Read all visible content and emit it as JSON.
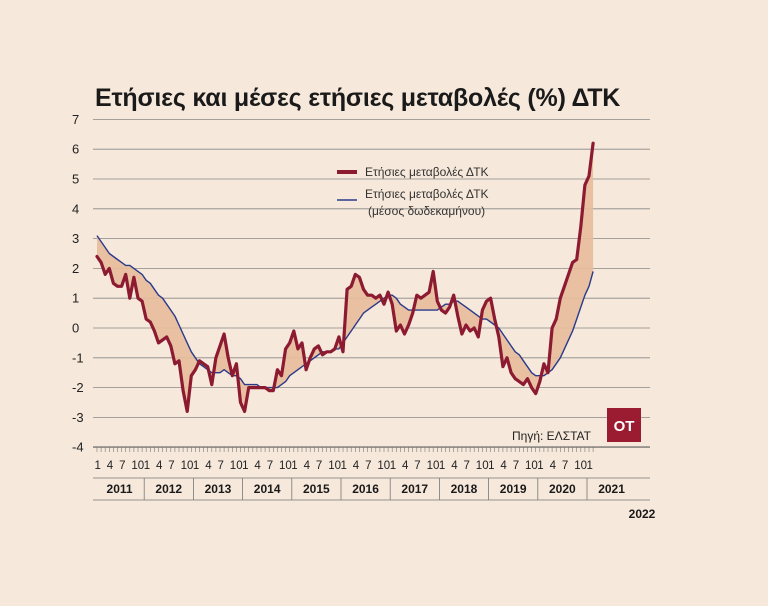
{
  "chart_data": {
    "type": "area",
    "title": "Ετήσιες και μέσες ετήσιες μεταβολές (%) ΔΤΚ",
    "xlabel": "",
    "ylabel": "",
    "ylim": [
      -4,
      7
    ],
    "y_ticks": [
      -4,
      -3,
      -2,
      -1,
      0,
      1,
      2,
      3,
      4,
      5,
      6,
      7
    ],
    "grid": true,
    "legend_position": "top-right",
    "x_start": "2011-01",
    "x_end": "2022-01",
    "month_tick_labels": [
      "1",
      "4",
      "7",
      "10"
    ],
    "year_labels": [
      "2011",
      "2012",
      "2013",
      "2014",
      "2015",
      "2016",
      "2017",
      "2018",
      "2019",
      "2020",
      "2021",
      "2022"
    ],
    "colors": {
      "annual": "#8c1a31",
      "average": "#2a3a8a",
      "fill": "#e8bd9b",
      "grid": "#888888",
      "background": "#f6e8da",
      "logo": "#9b1b30"
    },
    "series": [
      {
        "name": "Ετήσιες μεταβολές ΔΤΚ",
        "values": [
          2.4,
          2.2,
          1.8,
          2.0,
          1.5,
          1.4,
          1.4,
          1.8,
          1.0,
          1.7,
          1.0,
          0.9,
          0.3,
          0.2,
          -0.1,
          -0.5,
          -0.4,
          -0.3,
          -0.6,
          -1.2,
          -1.1,
          -2.1,
          -2.8,
          -1.6,
          -1.4,
          -1.1,
          -1.2,
          -1.3,
          -1.9,
          -1.0,
          -0.6,
          -0.2,
          -1.0,
          -1.6,
          -1.2,
          -2.5,
          -2.8,
          -2.0,
          -2.0,
          -2.0,
          -2.0,
          -2.0,
          -2.1,
          -2.1,
          -1.4,
          -1.6,
          -0.7,
          -0.5,
          -0.1,
          -0.7,
          -0.5,
          -1.4,
          -1.0,
          -0.7,
          -0.6,
          -0.9,
          -0.8,
          -0.8,
          -0.7,
          -0.3,
          -0.8,
          1.3,
          1.4,
          1.8,
          1.7,
          1.3,
          1.1,
          1.1,
          1.0,
          1.1,
          0.8,
          1.2,
          0.8,
          -0.1,
          0.1,
          -0.2,
          0.1,
          0.5,
          1.1,
          1.0,
          1.1,
          1.2,
          1.9,
          0.9,
          0.6,
          0.5,
          0.7,
          1.1,
          0.4,
          -0.2,
          0.1,
          -0.1,
          0.0,
          -0.3,
          0.6,
          0.9,
          1.0,
          0.3,
          -0.3,
          -1.3,
          -1.0,
          -1.5,
          -1.7,
          -1.8,
          -1.9,
          -1.7,
          -2.0,
          -2.2,
          -1.8,
          -1.2,
          -1.5,
          0.0,
          0.3,
          1.0,
          1.4,
          1.8,
          2.2,
          2.3,
          3.4,
          4.8,
          5.1,
          6.2
        ]
      },
      {
        "name": "Ετήσιες μεταβολές ΔΤΚ (μέσος δωδεκαμήνου)",
        "values": [
          3.1,
          2.9,
          2.7,
          2.5,
          2.4,
          2.3,
          2.2,
          2.1,
          2.1,
          2.0,
          1.9,
          1.8,
          1.6,
          1.5,
          1.3,
          1.1,
          1.0,
          0.8,
          0.6,
          0.4,
          0.1,
          -0.2,
          -0.5,
          -0.8,
          -1.0,
          -1.2,
          -1.3,
          -1.4,
          -1.5,
          -1.5,
          -1.5,
          -1.4,
          -1.5,
          -1.6,
          -1.6,
          -1.7,
          -1.9,
          -1.9,
          -1.9,
          -1.9,
          -2.0,
          -2.0,
          -2.0,
          -2.0,
          -2.0,
          -1.9,
          -1.8,
          -1.6,
          -1.5,
          -1.4,
          -1.3,
          -1.2,
          -1.1,
          -1.0,
          -0.9,
          -0.8,
          -0.8,
          -0.8,
          -0.7,
          -0.7,
          -0.5,
          -0.3,
          -0.1,
          0.1,
          0.3,
          0.5,
          0.6,
          0.7,
          0.8,
          0.9,
          1.0,
          1.1,
          1.1,
          1.0,
          0.8,
          0.7,
          0.6,
          0.6,
          0.6,
          0.6,
          0.6,
          0.6,
          0.6,
          0.6,
          0.7,
          0.8,
          0.8,
          0.9,
          0.9,
          0.8,
          0.7,
          0.6,
          0.5,
          0.4,
          0.3,
          0.3,
          0.2,
          0.1,
          0.0,
          -0.2,
          -0.4,
          -0.6,
          -0.8,
          -0.9,
          -1.1,
          -1.3,
          -1.5,
          -1.6,
          -1.6,
          -1.6,
          -1.5,
          -1.4,
          -1.2,
          -1.0,
          -0.7,
          -0.4,
          -0.1,
          0.3,
          0.7,
          1.1,
          1.4,
          1.9
        ]
      }
    ]
  },
  "legend": {
    "annual_label": "Ετήσιες μεταβολές ΔΤΚ",
    "average_label_line1": "Ετήσιες μεταβολές ΔΤΚ",
    "average_label_line2": "(μέσος δωδεκαμήνου)"
  },
  "source": "Πηγή: ΕΛΣΤΑΤ",
  "logo_text": "ΟΤ"
}
